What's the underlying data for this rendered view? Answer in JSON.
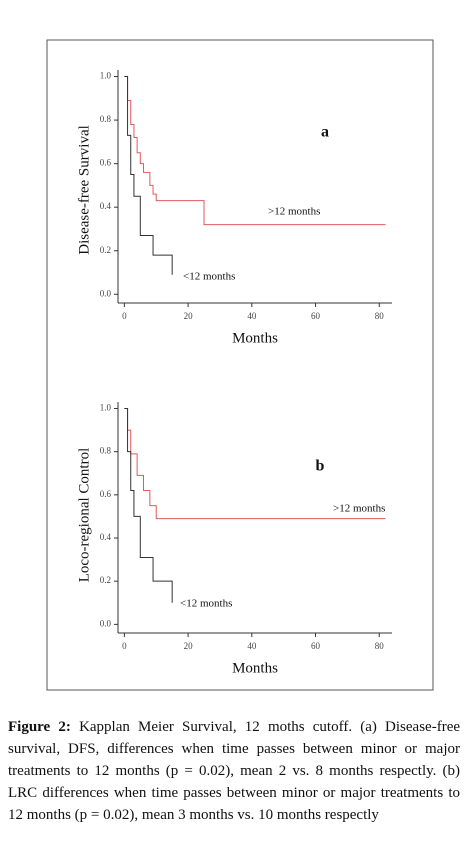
{
  "chart_data": [
    {
      "type": "line",
      "step": true,
      "xlabel": "Months",
      "ylabel": "Disease-free Survival",
      "annotations": [
        "a"
      ],
      "xlim": [
        -2,
        84
      ],
      "ylim": [
        -0.04,
        1.03
      ],
      "xticks": [
        0,
        20,
        40,
        60,
        80
      ],
      "yticks": [
        {
          "value": 0,
          "label": "0.0"
        },
        0.2,
        0.4,
        0.6,
        0.8,
        {
          "value": 1,
          "label": "1.0"
        }
      ],
      "series": [
        {
          "name": ">12 months",
          "color": "#e05a5a",
          "x": [
            0,
            1,
            2,
            3,
            4,
            5,
            6,
            8,
            9,
            10,
            25,
            82
          ],
          "values": [
            1.0,
            0.89,
            0.78,
            0.72,
            0.65,
            0.6,
            0.56,
            0.5,
            0.46,
            0.43,
            0.32,
            0.32
          ]
        },
        {
          "name": "<12 months",
          "color": "#333333",
          "x": [
            0,
            1,
            2,
            3,
            5,
            9,
            15
          ],
          "values": [
            1.0,
            0.73,
            0.55,
            0.45,
            0.27,
            0.18,
            0.09
          ]
        }
      ]
    },
    {
      "type": "line",
      "step": true,
      "xlabel": "Months",
      "ylabel": "Loco-regional Control",
      "annotations": [
        "b"
      ],
      "xlim": [
        -2,
        84
      ],
      "ylim": [
        -0.04,
        1.03
      ],
      "xticks": [
        0,
        20,
        40,
        60,
        80
      ],
      "yticks": [
        {
          "value": 0,
          "label": "0.0"
        },
        0.2,
        0.4,
        0.6,
        0.8,
        {
          "value": 1,
          "label": "1.0"
        }
      ],
      "series": [
        {
          "name": ">12 months",
          "color": "#e05a5a",
          "x": [
            0,
            1,
            2,
            4,
            6,
            8,
            10,
            82
          ],
          "values": [
            1.0,
            0.9,
            0.79,
            0.69,
            0.62,
            0.55,
            0.49,
            0.49
          ]
        },
        {
          "name": "<12 months",
          "color": "#333333",
          "x": [
            0,
            1,
            2,
            3,
            5,
            9,
            15
          ],
          "values": [
            1.0,
            0.8,
            0.62,
            0.5,
            0.31,
            0.2,
            0.1
          ]
        }
      ]
    }
  ],
  "caption": {
    "label": "Figure 2:",
    "text": "Kapplan Meier Survival, 12 moths cutoff. (a) Disease-free survival, DFS, differences when time passes between minor or major treatments to 12 months (p = 0.02), mean 2 vs. 8 months respectly. (b) LRC differences when time passes between minor or major treatments to 12 months (p = 0.02), mean 3 months vs. 10 months respectly"
  }
}
